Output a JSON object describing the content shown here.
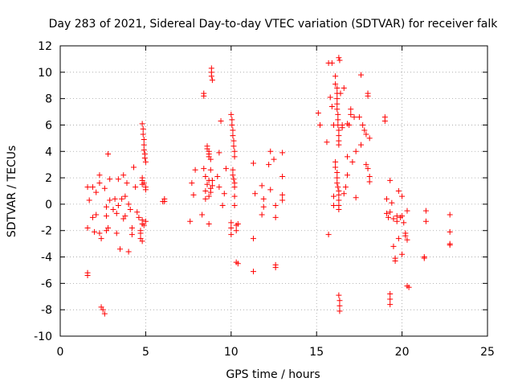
{
  "chart_data": {
    "type": "scatter",
    "title": "Day 283 of 2021, Sidereal Day-to-day VTEC variation (SDTVAR) for receiver falk",
    "xlabel": "GPS time / hours",
    "ylabel": "SDTVAR / TECUs",
    "xlim": [
      0,
      25
    ],
    "ylim": [
      -10,
      12
    ],
    "xticks": [
      0,
      5,
      10,
      15,
      20,
      25
    ],
    "yticks": [
      -10,
      -8,
      -6,
      -4,
      -2,
      0,
      2,
      4,
      6,
      8,
      10,
      12
    ],
    "grid": true,
    "marker": "+",
    "color": "#ff0000",
    "series": [
      {
        "name": "SDTVAR",
        "points": [
          [
            1.6,
            -5.2
          ],
          [
            1.6,
            -5.4
          ],
          [
            1.6,
            -1.8
          ],
          [
            1.6,
            1.3
          ],
          [
            1.7,
            0.3
          ],
          [
            1.9,
            1.3
          ],
          [
            1.9,
            -1.0
          ],
          [
            2.0,
            -2.1
          ],
          [
            2.1,
            -0.8
          ],
          [
            2.1,
            0.9
          ],
          [
            2.3,
            -2.2
          ],
          [
            2.3,
            1.6
          ],
          [
            2.3,
            2.2
          ],
          [
            2.4,
            -2.6
          ],
          [
            2.4,
            -7.8
          ],
          [
            2.5,
            -8.0
          ],
          [
            2.6,
            -8.3
          ],
          [
            2.7,
            -0.2
          ],
          [
            2.6,
            1.2
          ],
          [
            2.7,
            -2.0
          ],
          [
            2.7,
            -0.9
          ],
          [
            2.8,
            -1.8
          ],
          [
            2.8,
            3.8
          ],
          [
            2.9,
            1.9
          ],
          [
            2.9,
            0.3
          ],
          [
            3.1,
            -0.4
          ],
          [
            3.2,
            0.4
          ],
          [
            3.3,
            -0.7
          ],
          [
            3.3,
            -2.2
          ],
          [
            3.4,
            -0.1
          ],
          [
            3.4,
            1.9
          ],
          [
            3.5,
            -3.4
          ],
          [
            3.6,
            0.4
          ],
          [
            3.7,
            2.2
          ],
          [
            3.7,
            -1.1
          ],
          [
            3.8,
            -0.9
          ],
          [
            3.8,
            0.6
          ],
          [
            3.9,
            1.6
          ],
          [
            4.0,
            -3.6
          ],
          [
            4.0,
            0.0
          ],
          [
            4.1,
            -0.4
          ],
          [
            4.2,
            -2.3
          ],
          [
            4.2,
            -1.8
          ],
          [
            4.3,
            2.8
          ],
          [
            4.4,
            1.3
          ],
          [
            4.5,
            -0.6
          ],
          [
            4.6,
            -1.0
          ],
          [
            4.7,
            -2.6
          ],
          [
            4.7,
            -2.2
          ],
          [
            4.7,
            -2.0
          ],
          [
            4.8,
            -1.5
          ],
          [
            4.8,
            -1.2
          ],
          [
            4.8,
            1.5
          ],
          [
            4.8,
            1.8
          ],
          [
            4.8,
            2.0
          ],
          [
            4.8,
            6.1
          ],
          [
            4.85,
            5.7
          ],
          [
            4.85,
            5.3
          ],
          [
            4.9,
            4.9
          ],
          [
            4.9,
            4.5
          ],
          [
            4.9,
            4.1
          ],
          [
            4.95,
            3.8
          ],
          [
            4.95,
            3.5
          ],
          [
            5.0,
            3.2
          ],
          [
            4.9,
            1.6
          ],
          [
            5.0,
            1.3
          ],
          [
            5.0,
            1.1
          ],
          [
            5.0,
            -1.3
          ],
          [
            4.9,
            -1.6
          ],
          [
            4.8,
            -2.8
          ],
          [
            6.0,
            0.2
          ],
          [
            6.1,
            0.4
          ],
          [
            6.1,
            0.2
          ],
          [
            7.6,
            -1.3
          ],
          [
            7.7,
            1.6
          ],
          [
            7.8,
            0.7
          ],
          [
            7.9,
            2.6
          ],
          [
            8.3,
            -0.8
          ],
          [
            8.4,
            8.4
          ],
          [
            8.4,
            8.2
          ],
          [
            8.4,
            2.7
          ],
          [
            8.5,
            2.1
          ],
          [
            8.5,
            1.0
          ],
          [
            8.5,
            0.4
          ],
          [
            8.6,
            1.5
          ],
          [
            8.6,
            4.4
          ],
          [
            8.6,
            4.2
          ],
          [
            8.7,
            4.0
          ],
          [
            8.7,
            3.8
          ],
          [
            8.7,
            3.6
          ],
          [
            8.7,
            1.8
          ],
          [
            8.7,
            0.6
          ],
          [
            8.7,
            -1.5
          ],
          [
            8.8,
            0.9
          ],
          [
            8.8,
            1.2
          ],
          [
            8.8,
            2.6
          ],
          [
            8.8,
            3.4
          ],
          [
            8.85,
            10.3
          ],
          [
            8.85,
            10.0
          ],
          [
            8.85,
            9.7
          ],
          [
            8.9,
            9.4
          ],
          [
            8.9,
            1.8
          ],
          [
            8.9,
            1.4
          ],
          [
            9.2,
            2.1
          ],
          [
            9.3,
            3.9
          ],
          [
            9.3,
            1.3
          ],
          [
            9.4,
            6.3
          ],
          [
            9.5,
            -0.1
          ],
          [
            9.6,
            0.8
          ],
          [
            9.7,
            2.7
          ],
          [
            10.0,
            -2.3
          ],
          [
            10.0,
            -1.8
          ],
          [
            10.0,
            -1.4
          ],
          [
            10.0,
            6.8
          ],
          [
            10.05,
            6.4
          ],
          [
            10.05,
            6.0
          ],
          [
            10.1,
            5.6
          ],
          [
            10.1,
            5.2
          ],
          [
            10.15,
            4.8
          ],
          [
            10.15,
            4.4
          ],
          [
            10.2,
            4.0
          ],
          [
            10.2,
            3.6
          ],
          [
            10.1,
            2.6
          ],
          [
            10.1,
            2.2
          ],
          [
            10.15,
            1.9
          ],
          [
            10.2,
            1.6
          ],
          [
            10.2,
            1.3
          ],
          [
            10.2,
            0.6
          ],
          [
            10.2,
            -0.1
          ],
          [
            10.3,
            -2.0
          ],
          [
            10.3,
            -1.6
          ],
          [
            10.4,
            -1.5
          ],
          [
            10.3,
            -4.4
          ],
          [
            10.4,
            -4.5
          ],
          [
            11.3,
            -5.1
          ],
          [
            11.3,
            -2.6
          ],
          [
            11.3,
            3.1
          ],
          [
            11.4,
            0.8
          ],
          [
            11.8,
            -0.8
          ],
          [
            11.8,
            1.4
          ],
          [
            11.9,
            -0.2
          ],
          [
            11.9,
            0.4
          ],
          [
            12.2,
            3.0
          ],
          [
            12.3,
            1.1
          ],
          [
            12.3,
            4.0
          ],
          [
            12.5,
            3.4
          ],
          [
            12.6,
            -4.6
          ],
          [
            12.6,
            -4.8
          ],
          [
            12.6,
            -1.0
          ],
          [
            12.6,
            -0.1
          ],
          [
            13.0,
            2.1
          ],
          [
            13.0,
            3.9
          ],
          [
            13.0,
            0.3
          ],
          [
            13.0,
            0.7
          ],
          [
            15.1,
            6.9
          ],
          [
            15.2,
            6.0
          ],
          [
            15.6,
            4.7
          ],
          [
            15.7,
            -2.3
          ],
          [
            15.7,
            10.7
          ],
          [
            15.8,
            8.1
          ],
          [
            15.9,
            10.7
          ],
          [
            15.9,
            7.4
          ],
          [
            16.0,
            6.0
          ],
          [
            16.0,
            -0.1
          ],
          [
            16.0,
            0.6
          ],
          [
            16.1,
            9.7
          ],
          [
            16.1,
            9.1
          ],
          [
            16.2,
            8.8
          ],
          [
            16.2,
            8.4
          ],
          [
            16.2,
            8.0
          ],
          [
            16.2,
            7.6
          ],
          [
            16.2,
            7.2
          ],
          [
            16.25,
            6.8
          ],
          [
            16.25,
            6.4
          ],
          [
            16.25,
            6.0
          ],
          [
            16.3,
            5.6
          ],
          [
            16.3,
            5.2
          ],
          [
            16.3,
            4.8
          ],
          [
            16.3,
            4.5
          ],
          [
            16.1,
            3.2
          ],
          [
            16.1,
            2.8
          ],
          [
            16.2,
            2.4
          ],
          [
            16.2,
            2.0
          ],
          [
            16.2,
            1.6
          ],
          [
            16.25,
            1.3
          ],
          [
            16.3,
            1.0
          ],
          [
            16.3,
            0.7
          ],
          [
            16.3,
            0.3
          ],
          [
            16.3,
            -0.4
          ],
          [
            16.3,
            -0.1
          ],
          [
            16.3,
            11.1
          ],
          [
            16.35,
            10.9
          ],
          [
            16.3,
            -6.9
          ],
          [
            16.35,
            -7.3
          ],
          [
            16.35,
            -7.7
          ],
          [
            16.35,
            -8.1
          ],
          [
            16.4,
            8.4
          ],
          [
            16.5,
            5.8
          ],
          [
            16.5,
            6.0
          ],
          [
            16.6,
            8.8
          ],
          [
            16.6,
            0.8
          ],
          [
            16.7,
            1.3
          ],
          [
            16.8,
            6.1
          ],
          [
            16.8,
            2.2
          ],
          [
            16.8,
            3.6
          ],
          [
            16.9,
            6.0
          ],
          [
            17.0,
            7.2
          ],
          [
            17.0,
            6.8
          ],
          [
            17.1,
            3.2
          ],
          [
            17.2,
            6.6
          ],
          [
            17.3,
            4.0
          ],
          [
            17.3,
            0.5
          ],
          [
            17.5,
            6.6
          ],
          [
            17.6,
            9.8
          ],
          [
            17.6,
            4.5
          ],
          [
            17.7,
            6.0
          ],
          [
            17.8,
            5.6
          ],
          [
            17.9,
            3.0
          ],
          [
            17.9,
            5.3
          ],
          [
            18.0,
            8.4
          ],
          [
            18.0,
            8.2
          ],
          [
            18.0,
            2.7
          ],
          [
            18.1,
            5.0
          ],
          [
            18.1,
            1.7
          ],
          [
            18.1,
            2.1
          ],
          [
            19.0,
            6.6
          ],
          [
            19.0,
            6.3
          ],
          [
            19.1,
            0.4
          ],
          [
            19.1,
            -0.7
          ],
          [
            19.2,
            -1.0
          ],
          [
            19.3,
            1.8
          ],
          [
            19.3,
            -0.6
          ],
          [
            19.3,
            -6.8
          ],
          [
            19.3,
            -7.2
          ],
          [
            19.3,
            -7.6
          ],
          [
            19.4,
            0.1
          ],
          [
            19.5,
            -1.1
          ],
          [
            19.5,
            -3.2
          ],
          [
            19.6,
            -4.3
          ],
          [
            19.6,
            -4.1
          ],
          [
            19.7,
            -1.3
          ],
          [
            19.7,
            -0.9
          ],
          [
            19.8,
            -2.6
          ],
          [
            19.8,
            1.0
          ],
          [
            19.9,
            -1.0
          ],
          [
            20.0,
            0.6
          ],
          [
            20.0,
            -0.9
          ],
          [
            20.1,
            -1.4
          ],
          [
            20.2,
            -2.2
          ],
          [
            20.2,
            -2.4
          ],
          [
            20.3,
            -2.7
          ],
          [
            20.3,
            -0.5
          ],
          [
            20.3,
            -6.2
          ],
          [
            20.4,
            -6.3
          ],
          [
            20.0,
            -3.8
          ],
          [
            21.3,
            -4.0
          ],
          [
            21.3,
            -4.1
          ],
          [
            21.4,
            -0.5
          ],
          [
            21.4,
            -1.3
          ],
          [
            22.8,
            -0.8
          ],
          [
            22.8,
            -2.1
          ],
          [
            22.8,
            -3.0
          ],
          [
            22.8,
            -3.1
          ]
        ]
      }
    ]
  }
}
